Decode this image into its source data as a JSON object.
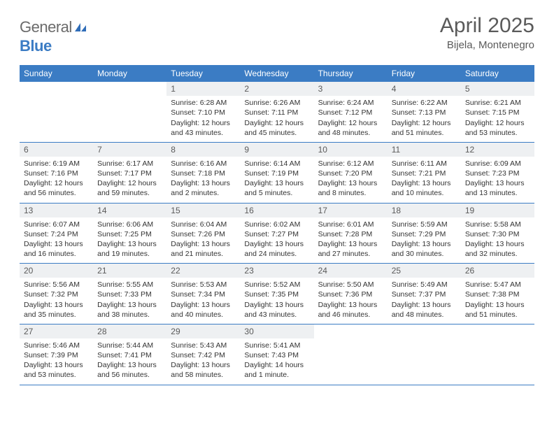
{
  "brand": {
    "gray_part": "General",
    "blue_part": "Blue"
  },
  "title": "April 2025",
  "location": "Bijela, Montenegro",
  "colors": {
    "header_bg": "#3b7cc4",
    "header_text": "#ffffff",
    "daynum_bg": "#eef0f2",
    "text": "#333333",
    "rule": "#3b7cc4"
  },
  "day_headers": [
    "Sunday",
    "Monday",
    "Tuesday",
    "Wednesday",
    "Thursday",
    "Friday",
    "Saturday"
  ],
  "weeks": [
    [
      null,
      null,
      {
        "n": "1",
        "sunrise": "6:28 AM",
        "sunset": "7:10 PM",
        "daylight": "12 hours and 43 minutes."
      },
      {
        "n": "2",
        "sunrise": "6:26 AM",
        "sunset": "7:11 PM",
        "daylight": "12 hours and 45 minutes."
      },
      {
        "n": "3",
        "sunrise": "6:24 AM",
        "sunset": "7:12 PM",
        "daylight": "12 hours and 48 minutes."
      },
      {
        "n": "4",
        "sunrise": "6:22 AM",
        "sunset": "7:13 PM",
        "daylight": "12 hours and 51 minutes."
      },
      {
        "n": "5",
        "sunrise": "6:21 AM",
        "sunset": "7:15 PM",
        "daylight": "12 hours and 53 minutes."
      }
    ],
    [
      {
        "n": "6",
        "sunrise": "6:19 AM",
        "sunset": "7:16 PM",
        "daylight": "12 hours and 56 minutes."
      },
      {
        "n": "7",
        "sunrise": "6:17 AM",
        "sunset": "7:17 PM",
        "daylight": "12 hours and 59 minutes."
      },
      {
        "n": "8",
        "sunrise": "6:16 AM",
        "sunset": "7:18 PM",
        "daylight": "13 hours and 2 minutes."
      },
      {
        "n": "9",
        "sunrise": "6:14 AM",
        "sunset": "7:19 PM",
        "daylight": "13 hours and 5 minutes."
      },
      {
        "n": "10",
        "sunrise": "6:12 AM",
        "sunset": "7:20 PM",
        "daylight": "13 hours and 8 minutes."
      },
      {
        "n": "11",
        "sunrise": "6:11 AM",
        "sunset": "7:21 PM",
        "daylight": "13 hours and 10 minutes."
      },
      {
        "n": "12",
        "sunrise": "6:09 AM",
        "sunset": "7:23 PM",
        "daylight": "13 hours and 13 minutes."
      }
    ],
    [
      {
        "n": "13",
        "sunrise": "6:07 AM",
        "sunset": "7:24 PM",
        "daylight": "13 hours and 16 minutes."
      },
      {
        "n": "14",
        "sunrise": "6:06 AM",
        "sunset": "7:25 PM",
        "daylight": "13 hours and 19 minutes."
      },
      {
        "n": "15",
        "sunrise": "6:04 AM",
        "sunset": "7:26 PM",
        "daylight": "13 hours and 21 minutes."
      },
      {
        "n": "16",
        "sunrise": "6:02 AM",
        "sunset": "7:27 PM",
        "daylight": "13 hours and 24 minutes."
      },
      {
        "n": "17",
        "sunrise": "6:01 AM",
        "sunset": "7:28 PM",
        "daylight": "13 hours and 27 minutes."
      },
      {
        "n": "18",
        "sunrise": "5:59 AM",
        "sunset": "7:29 PM",
        "daylight": "13 hours and 30 minutes."
      },
      {
        "n": "19",
        "sunrise": "5:58 AM",
        "sunset": "7:30 PM",
        "daylight": "13 hours and 32 minutes."
      }
    ],
    [
      {
        "n": "20",
        "sunrise": "5:56 AM",
        "sunset": "7:32 PM",
        "daylight": "13 hours and 35 minutes."
      },
      {
        "n": "21",
        "sunrise": "5:55 AM",
        "sunset": "7:33 PM",
        "daylight": "13 hours and 38 minutes."
      },
      {
        "n": "22",
        "sunrise": "5:53 AM",
        "sunset": "7:34 PM",
        "daylight": "13 hours and 40 minutes."
      },
      {
        "n": "23",
        "sunrise": "5:52 AM",
        "sunset": "7:35 PM",
        "daylight": "13 hours and 43 minutes."
      },
      {
        "n": "24",
        "sunrise": "5:50 AM",
        "sunset": "7:36 PM",
        "daylight": "13 hours and 46 minutes."
      },
      {
        "n": "25",
        "sunrise": "5:49 AM",
        "sunset": "7:37 PM",
        "daylight": "13 hours and 48 minutes."
      },
      {
        "n": "26",
        "sunrise": "5:47 AM",
        "sunset": "7:38 PM",
        "daylight": "13 hours and 51 minutes."
      }
    ],
    [
      {
        "n": "27",
        "sunrise": "5:46 AM",
        "sunset": "7:39 PM",
        "daylight": "13 hours and 53 minutes."
      },
      {
        "n": "28",
        "sunrise": "5:44 AM",
        "sunset": "7:41 PM",
        "daylight": "13 hours and 56 minutes."
      },
      {
        "n": "29",
        "sunrise": "5:43 AM",
        "sunset": "7:42 PM",
        "daylight": "13 hours and 58 minutes."
      },
      {
        "n": "30",
        "sunrise": "5:41 AM",
        "sunset": "7:43 PM",
        "daylight": "14 hours and 1 minute."
      },
      null,
      null,
      null
    ]
  ],
  "labels": {
    "sunrise": "Sunrise:",
    "sunset": "Sunset:",
    "daylight": "Daylight:"
  }
}
